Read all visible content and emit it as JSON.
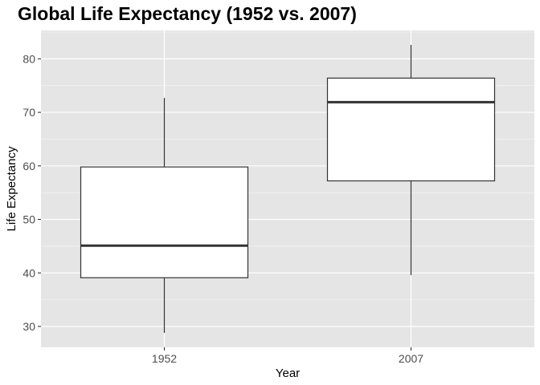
{
  "chart_data": {
    "type": "boxplot",
    "title": "Global Life Expectancy (1952 vs. 2007)",
    "xlabel": "Year",
    "ylabel": "Life Expectancy",
    "categories": [
      "1952",
      "2007"
    ],
    "boxes": [
      {
        "category": "1952",
        "whisker_low": 28.8,
        "q1": 39.1,
        "median": 45.1,
        "q3": 59.8,
        "whisker_high": 72.7
      },
      {
        "category": "2007",
        "whisker_low": 39.6,
        "q1": 57.2,
        "median": 71.9,
        "q3": 76.4,
        "whisker_high": 82.6
      }
    ],
    "yticks": [
      30,
      40,
      50,
      60,
      70,
      80
    ],
    "ylim": [
      26.1,
      85.3
    ],
    "grid": true,
    "legend": "none",
    "colors": {
      "panel": "#e5e5e5",
      "grid_major": "#ffffff",
      "box_fill": "#ffffff",
      "box_line": "#333333"
    }
  }
}
